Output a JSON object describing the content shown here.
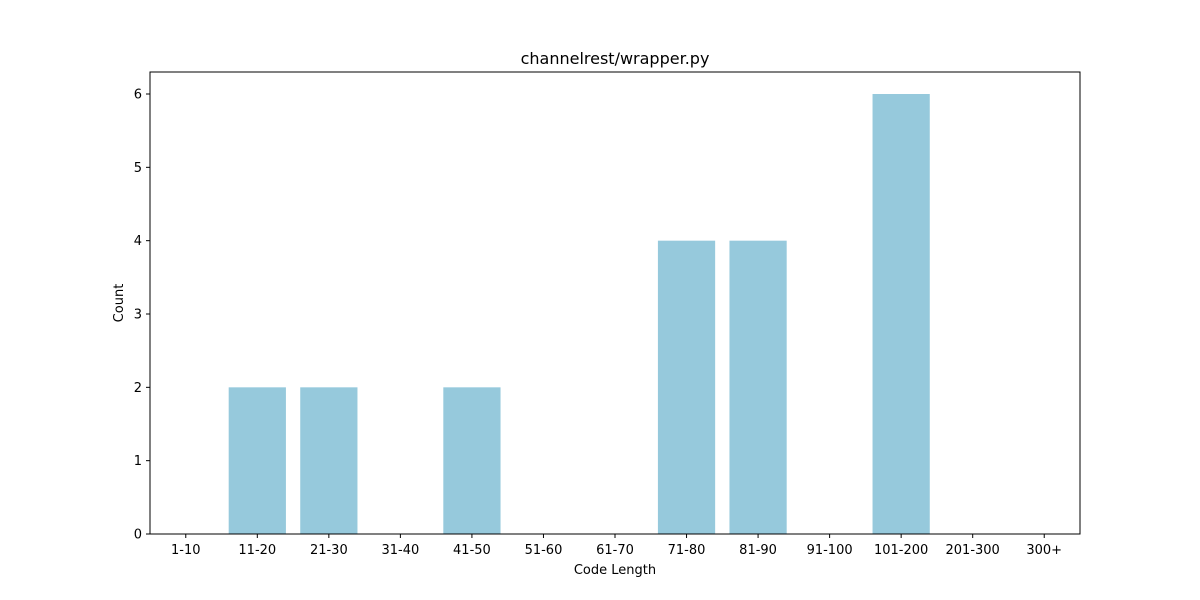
{
  "chart_data": {
    "type": "bar",
    "title": "channelrest/wrapper.py",
    "xlabel": "Code Length",
    "ylabel": "Count",
    "categories": [
      "1-10",
      "11-20",
      "21-30",
      "31-40",
      "41-50",
      "51-60",
      "61-70",
      "71-80",
      "81-90",
      "91-100",
      "101-200",
      "201-300",
      "300+"
    ],
    "values": [
      0,
      2,
      2,
      0,
      2,
      0,
      0,
      4,
      4,
      0,
      6,
      0,
      0
    ],
    "ylim": [
      0,
      6.3
    ],
    "yticks": [
      "0",
      "1",
      "2",
      "3",
      "4",
      "5",
      "6"
    ],
    "grid": false,
    "legend": "none",
    "bar_color": "#96c9dc"
  }
}
